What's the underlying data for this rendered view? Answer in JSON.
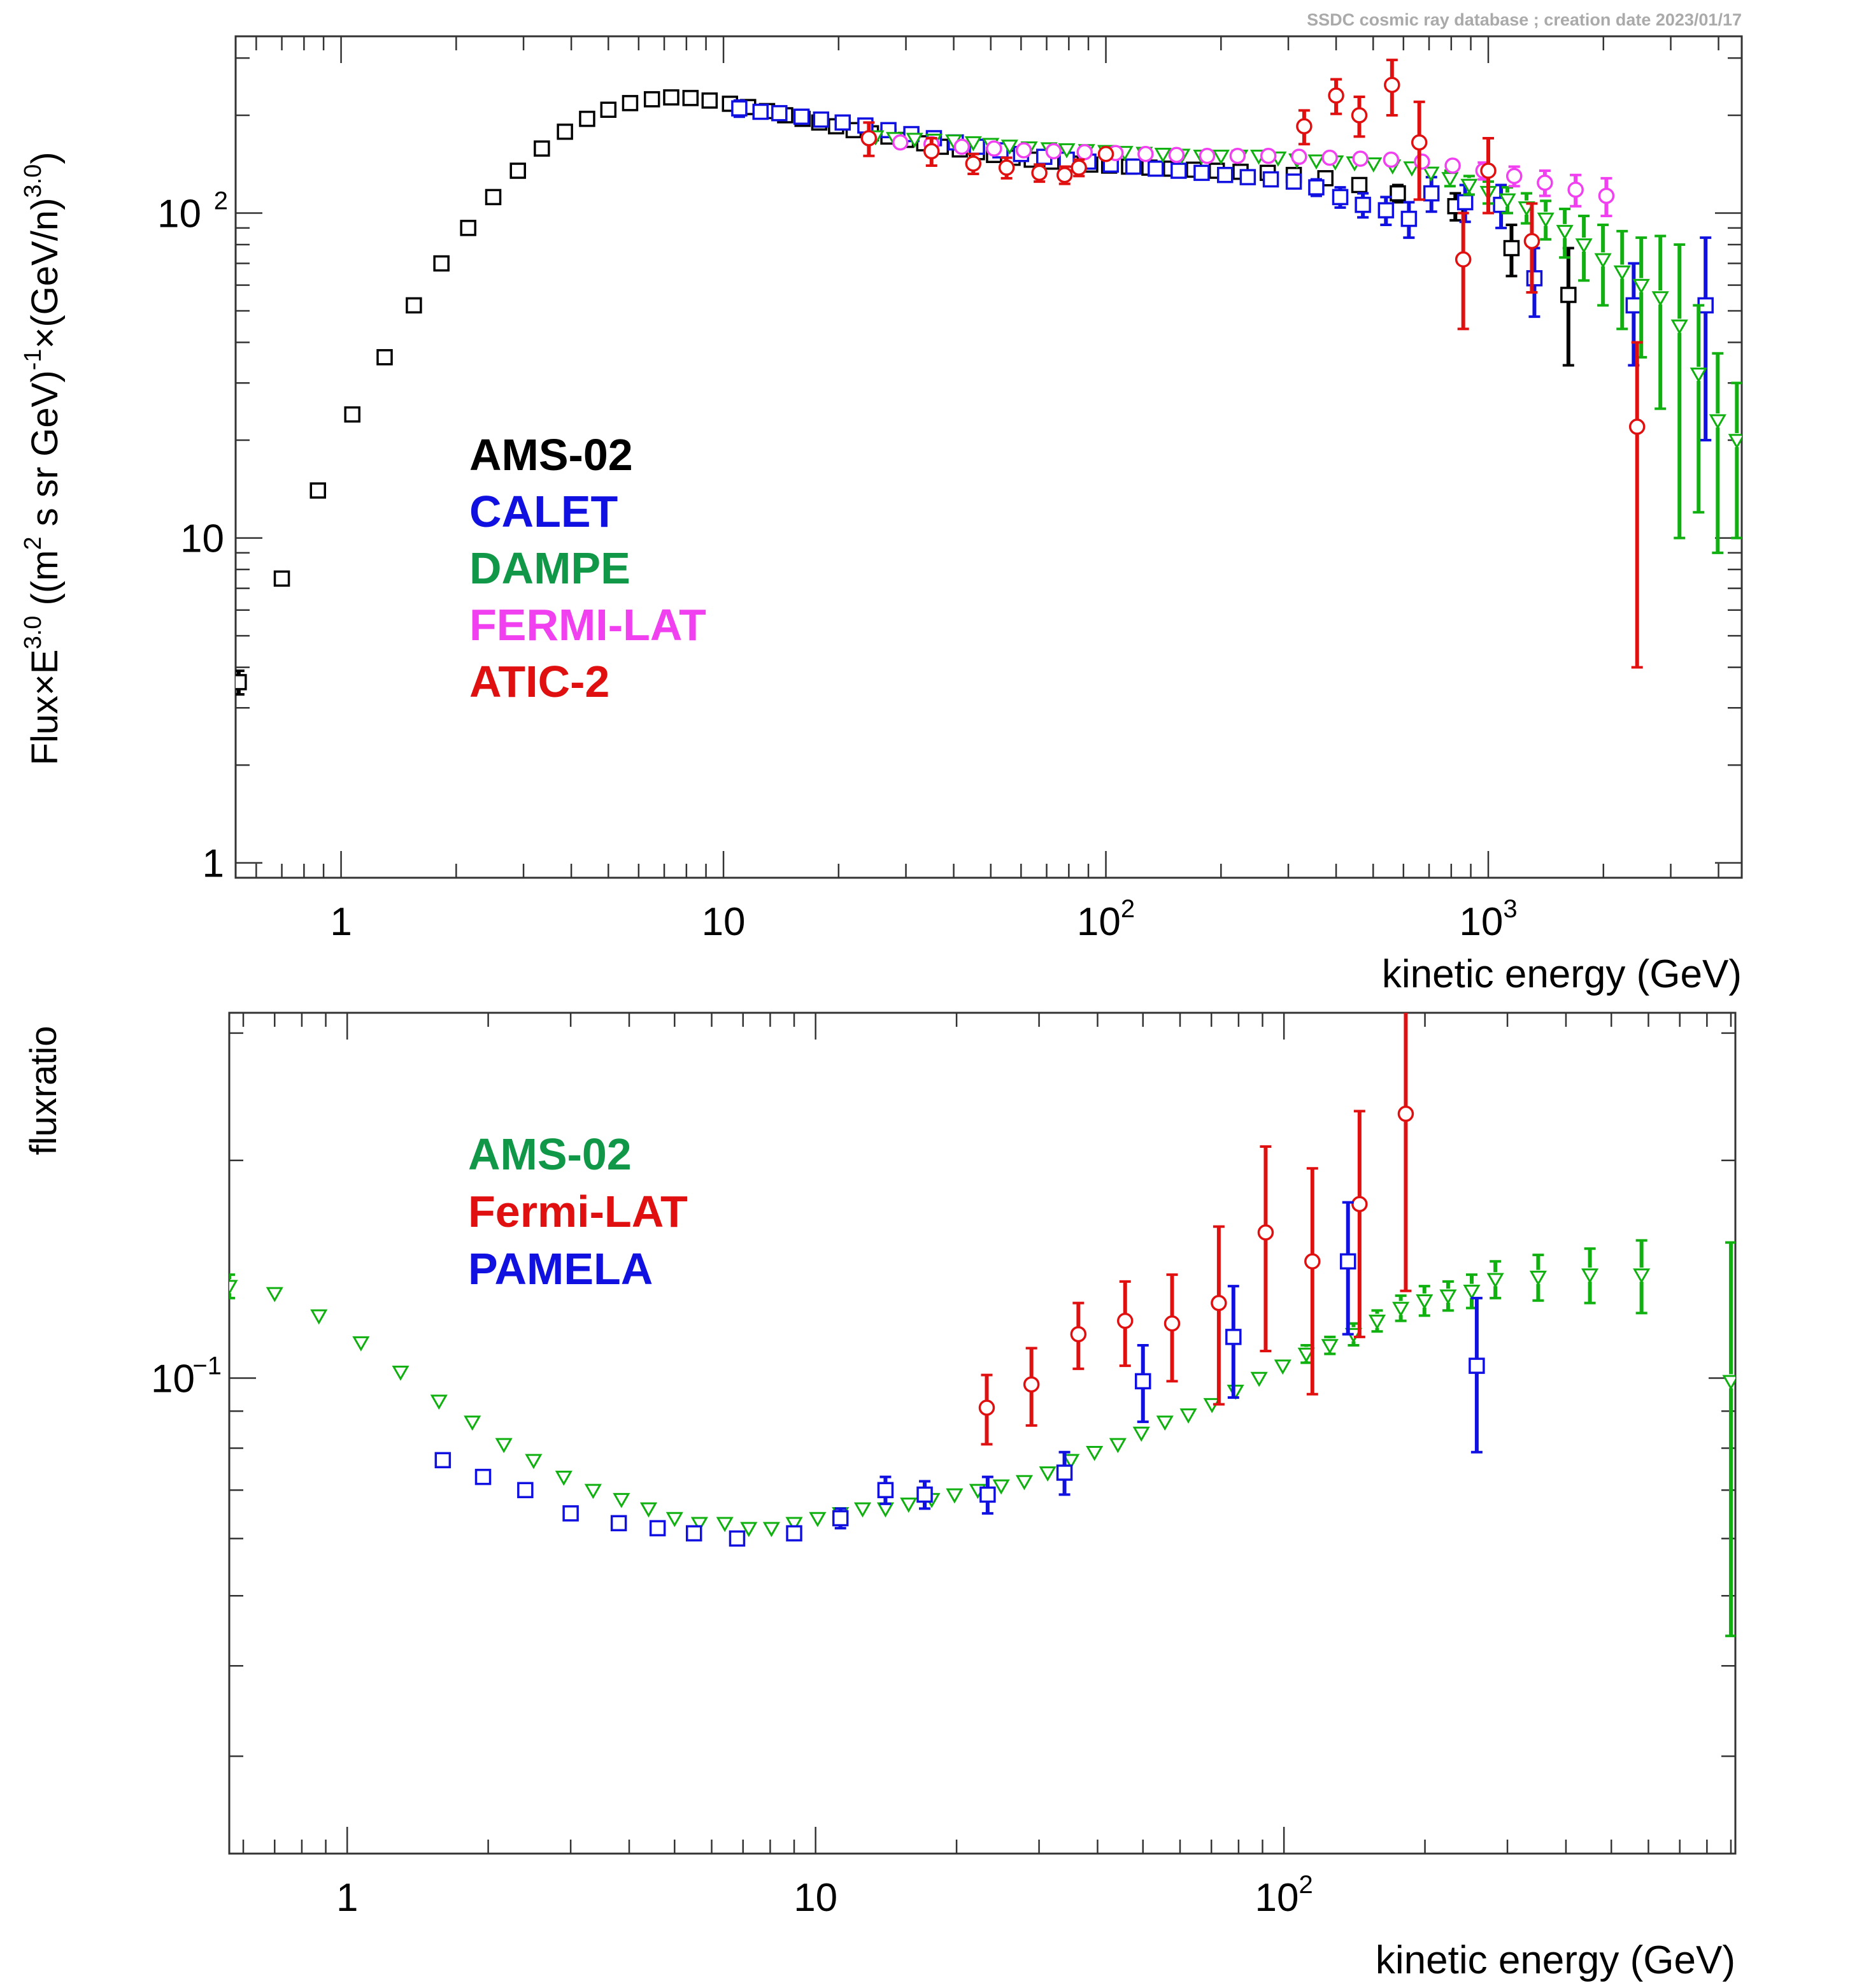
{
  "header": {
    "source": "SSDC cosmic ray database ; creation date 2023/01/17"
  },
  "colors": {
    "black": "#000000",
    "blue": "#1010e0",
    "green": "#10b010",
    "magenta": "#f040f0",
    "red": "#e01010",
    "legend_green": "#109848"
  },
  "chart_data": [
    {
      "type": "scatter",
      "title": "",
      "xlabel": "kinetic energy (GeV)",
      "ylabel": "Flux×E^3.0 ((m^2 s sr GeV)^-1×(GeV/n)^3.0)",
      "ylabel_parts": {
        "a": "Flux×E",
        "a_sup": "3.0",
        "b": " ((m",
        "b_sup": "2",
        "c": " s sr GeV)",
        "c_sup": "-1",
        "d": "×(GeV/n)",
        "d_sup": "3.0",
        "e": ")"
      },
      "xscale": "log",
      "yscale": "log",
      "xlim": [
        0.53,
        4600
      ],
      "ylim": [
        0.9,
        350
      ],
      "x_ticks": [
        {
          "value": 1,
          "base": "1",
          "exp": ""
        },
        {
          "value": 10,
          "base": "10",
          "exp": ""
        },
        {
          "value": 100,
          "base": "10",
          "exp": "2"
        },
        {
          "value": 1000,
          "base": "10",
          "exp": "3"
        }
      ],
      "y_ticks": [
        {
          "value": 1,
          "base": "1",
          "exp": ""
        },
        {
          "value": 10,
          "base": "10",
          "exp": ""
        },
        {
          "value": 100,
          "base": "10",
          "exp": "2"
        }
      ],
      "legend_position": "center-left",
      "series": [
        {
          "name": "AMS-02",
          "color": "#000000",
          "marker": "square",
          "x": [
            0.54,
            0.7,
            0.87,
            1.07,
            1.3,
            1.55,
            1.83,
            2.15,
            2.5,
            2.9,
            3.35,
            3.85,
            4.4,
            5.0,
            5.7,
            6.5,
            7.3,
            8.2,
            9.2,
            10.4,
            11.6,
            13,
            14.5,
            16.1,
            17.8,
            19.7,
            21.9,
            24.3,
            27,
            30,
            33.5,
            37,
            41.5,
            46,
            51,
            57,
            64,
            72,
            81,
            91,
            102,
            115,
            130,
            148,
            170,
            195,
            225,
            265,
            310,
            375,
            460,
            580,
            820,
            1150,
            1620
          ],
          "y": [
            3.6,
            7.5,
            14,
            24,
            36,
            52,
            70,
            90,
            112,
            135,
            158,
            178,
            195,
            208,
            218,
            224,
            227,
            226,
            222,
            217,
            212,
            206,
            200,
            195,
            190,
            185,
            180,
            176,
            172,
            168,
            164,
            160,
            157,
            154,
            151,
            148,
            146,
            144,
            142,
            141,
            140,
            139,
            138,
            137,
            136,
            135,
            134,
            133,
            131,
            128,
            122,
            115,
            105,
            78,
            56
          ],
          "err": [
            0.3,
            0.4,
            0.6,
            0.9,
            1.2,
            1.5,
            2,
            2.5,
            3,
            3,
            3,
            3,
            3,
            3,
            3,
            3,
            3,
            3,
            3,
            3,
            3,
            3,
            3,
            3,
            3,
            3,
            3,
            3,
            3,
            3,
            3,
            3,
            3,
            3,
            3,
            3,
            3,
            3,
            3,
            3,
            3,
            3,
            3,
            3,
            3,
            3,
            3,
            3,
            4,
            5,
            6,
            7,
            10,
            14,
            22
          ]
        },
        {
          "name": "CALET",
          "color": "#1010e0",
          "marker": "square",
          "x": [
            11,
            12.5,
            14,
            16,
            18,
            20.5,
            23.5,
            27,
            31,
            35.5,
            40.5,
            46,
            53,
            60,
            69,
            79,
            90,
            103,
            118,
            135,
            155,
            178,
            205,
            235,
            270,
            310,
            355,
            410,
            470,
            540,
            620,
            710,
            870,
            1080,
            1320,
            2400,
            3700
          ],
          "y": [
            210,
            205,
            203,
            198,
            194,
            190,
            186,
            180,
            175,
            170,
            165,
            160,
            156,
            152,
            149,
            146,
            144,
            141,
            139,
            137,
            135,
            133,
            131,
            129,
            127,
            125,
            120,
            112,
            106,
            102,
            96,
            115,
            108,
            106,
            63,
            52,
            52
          ],
          "err": [
            12,
            10,
            8,
            7,
            6,
            6,
            5,
            5,
            5,
            5,
            5,
            4,
            4,
            4,
            4,
            4,
            4,
            4,
            4,
            4,
            4,
            4,
            4,
            5,
            5,
            6,
            7,
            8,
            9,
            10,
            12,
            14,
            14,
            16,
            15,
            18,
            32
          ]
        },
        {
          "name": "DAMPE",
          "color": "#10b010",
          "marker": "triangle-down",
          "x": [
            25,
            28,
            31.6,
            35.5,
            40,
            45,
            50,
            56,
            63,
            71,
            79,
            89,
            100,
            112,
            126,
            141,
            158,
            178,
            200,
            224,
            251,
            282,
            316,
            355,
            398,
            447,
            501,
            562,
            631,
            708,
            794,
            891,
            1000,
            1122,
            1259,
            1413,
            1585,
            1778,
            1995,
            2239,
            2512,
            2818,
            3162,
            3548,
            3981,
            4467
          ],
          "y": [
            172,
            170,
            169,
            168,
            167,
            165,
            163,
            161,
            159,
            158,
            157,
            156,
            155,
            154,
            153,
            152,
            151,
            150,
            150,
            150,
            150,
            148,
            146,
            145,
            144,
            143,
            142,
            140,
            138,
            133,
            128,
            122,
            116,
            110,
            104,
            96,
            88,
            80,
            72,
            66,
            60,
            55,
            45,
            32,
            23,
            20
          ],
          "err": [
            5,
            5,
            5,
            5,
            5,
            5,
            5,
            4,
            4,
            4,
            4,
            4,
            4,
            4,
            4,
            4,
            4,
            4,
            4,
            4,
            4,
            4,
            4,
            4,
            4,
            5,
            5,
            5,
            6,
            6,
            7,
            8,
            9,
            10,
            11,
            13,
            15,
            18,
            20,
            22,
            24,
            30,
            35,
            20,
            14,
            10
          ]
        },
        {
          "name": "FERMI-LAT",
          "color": "#f040f0",
          "marker": "circle",
          "x": [
            24,
            29,
            35,
            42,
            51,
            61,
            73,
            88,
            106,
            127,
            153,
            184,
            221,
            266,
            320,
            385,
            463,
            557,
            671,
            807,
            971,
            1169,
            1406,
            1692,
            2036
          ],
          "y": [
            170,
            165,
            163,
            160,
            158,
            156,
            155,
            154,
            153,
            152,
            151,
            150,
            150,
            150,
            149,
            148,
            147,
            146,
            144,
            140,
            135,
            130,
            124,
            118,
            113
          ],
          "err": [
            4,
            4,
            4,
            4,
            4,
            4,
            4,
            4,
            4,
            4,
            4,
            4,
            4,
            4,
            4,
            4,
            5,
            5,
            6,
            7,
            8,
            9,
            11,
            13,
            15
          ]
        },
        {
          "name": "ATIC-2",
          "color": "#e01010",
          "marker": "circle",
          "x": [
            24,
            35,
            45,
            55,
            67,
            78,
            85,
            100,
            330,
            400,
            460,
            560,
            660,
            860,
            1000,
            1300,
            2450
          ],
          "y": [
            170,
            155,
            142,
            138,
            133,
            131,
            138,
            152,
            185,
            230,
            200,
            248,
            165,
            72,
            135,
            82,
            22
          ],
          "err": [
            20,
            15,
            10,
            10,
            8,
            8,
            8,
            8,
            22,
            28,
            28,
            48,
            55,
            28,
            35,
            25,
            18
          ]
        }
      ]
    },
    {
      "type": "scatter",
      "title": "",
      "xlabel": "kinetic energy (GeV)",
      "ylabel": "fluxratio",
      "xscale": "log",
      "yscale": "log",
      "xlim": [
        0.56,
        920
      ],
      "ylim": [
        0.022,
        0.32
      ],
      "x_ticks": [
        {
          "value": 1,
          "base": "1",
          "exp": ""
        },
        {
          "value": 10,
          "base": "10",
          "exp": ""
        },
        {
          "value": 100,
          "base": "10",
          "exp": "2"
        }
      ],
      "y_ticks": [
        {
          "value": 0.1,
          "base": "10",
          "exp": "−1"
        }
      ],
      "legend_position": "upper-left",
      "series": [
        {
          "name": "AMS-02",
          "color": "#10b010",
          "marker": "triangle-down",
          "x": [
            0.56,
            0.7,
            0.87,
            1.07,
            1.3,
            1.57,
            1.85,
            2.16,
            2.5,
            2.9,
            3.35,
            3.85,
            4.4,
            5.0,
            5.65,
            6.4,
            7.2,
            8.05,
            9.0,
            10.1,
            11.3,
            12.6,
            14.1,
            15.8,
            17.7,
            19.8,
            22.2,
            24.9,
            27.9,
            31.3,
            35.1,
            39.4,
            44.2,
            49.6,
            55.7,
            62.5,
            70.2,
            78.8,
            88.5,
            99.4,
            111.6,
            125.3,
            140.8,
            158.1,
            177.6,
            199.5,
            224.1,
            251.7,
            282.7,
            349,
            450,
            580,
            900
          ],
          "y": [
            0.134,
            0.131,
            0.122,
            0.112,
            0.102,
            0.093,
            0.087,
            0.081,
            0.077,
            0.073,
            0.07,
            0.068,
            0.066,
            0.064,
            0.063,
            0.063,
            0.062,
            0.062,
            0.063,
            0.064,
            0.065,
            0.066,
            0.066,
            0.067,
            0.068,
            0.069,
            0.07,
            0.071,
            0.072,
            0.074,
            0.077,
            0.079,
            0.081,
            0.084,
            0.087,
            0.089,
            0.092,
            0.096,
            0.1,
            0.104,
            0.108,
            0.111,
            0.115,
            0.12,
            0.125,
            0.128,
            0.13,
            0.132,
            0.137,
            0.138,
            0.139,
            0.139,
            0.099
          ],
          "err": [
            0.005,
            0.002,
            0.002,
            0.002,
            0.002,
            0.001,
            0.001,
            0.001,
            0.001,
            0.001,
            0.001,
            0.001,
            0.001,
            0.001,
            0.001,
            0.001,
            0.001,
            0.001,
            0.001,
            0.001,
            0.001,
            0.001,
            0.001,
            0.001,
            0.001,
            0.001,
            0.001,
            0.001,
            0.001,
            0.001,
            0.001,
            0.001,
            0.001,
            0.001,
            0.001,
            0.001,
            0.001,
            0.002,
            0.002,
            0.002,
            0.003,
            0.003,
            0.004,
            0.004,
            0.005,
            0.006,
            0.006,
            0.007,
            0.008,
            0.01,
            0.012,
            0.016,
            0.055
          ]
        },
        {
          "name": "Fermi-LAT",
          "color": "#e01010",
          "marker": "circle",
          "x": [
            23.2,
            28.9,
            36.4,
            45.8,
            57.7,
            72.6,
            91.4,
            115,
            145,
            182
          ],
          "y": [
            0.091,
            0.098,
            0.115,
            0.12,
            0.119,
            0.127,
            0.159,
            0.145,
            0.174,
            0.232
          ],
          "err": [
            0.01,
            0.012,
            0.012,
            0.016,
            0.02,
            0.035,
            0.05,
            0.05,
            0.06,
            0.1
          ]
        },
        {
          "name": "PAMELA",
          "color": "#1010e0",
          "marker": "square",
          "x": [
            1.6,
            1.95,
            2.4,
            3.0,
            3.8,
            4.6,
            5.5,
            6.8,
            9.0,
            11.3,
            14.1,
            17.1,
            23.3,
            34,
            50,
            78,
            137,
            258
          ],
          "y": [
            0.077,
            0.073,
            0.07,
            0.065,
            0.063,
            0.062,
            0.061,
            0.06,
            0.061,
            0.064,
            0.07,
            0.069,
            0.069,
            0.074,
            0.099,
            0.114,
            0.145,
            0.104
          ],
          "err": [
            0.001,
            0.001,
            0.001,
            0.001,
            0.001,
            0.001,
            0.001,
            0.001,
            0.001,
            0.002,
            0.003,
            0.003,
            0.004,
            0.005,
            0.012,
            0.02,
            0.03,
            0.025
          ]
        }
      ]
    }
  ]
}
